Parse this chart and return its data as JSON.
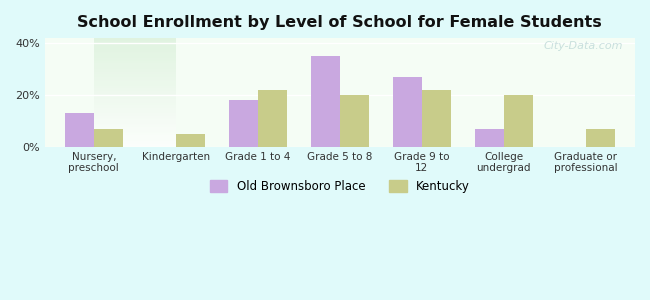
{
  "title": "School Enrollment by Level of School for Female Students",
  "categories": [
    "Nursery,\npreschool",
    "Kindergarten",
    "Grade 1 to 4",
    "Grade 5 to 8",
    "Grade 9 to\n12",
    "College\nundergrad",
    "Graduate or\nprofessional"
  ],
  "series": {
    "Old Brownsboro Place": [
      13,
      0,
      18,
      35,
      27,
      7,
      0
    ],
    "Kentucky": [
      7,
      5,
      22,
      20,
      22,
      20,
      7
    ]
  },
  "bar_colors": {
    "Old Brownsboro Place": "#c9a8e0",
    "Kentucky": "#c8cc8a"
  },
  "ylim": [
    0,
    42
  ],
  "yticks": [
    0,
    20,
    40
  ],
  "ytick_labels": [
    "0%",
    "20%",
    "40%"
  ],
  "background_color": "#e0fafa",
  "plot_bg_start": "#f0faf0",
  "plot_bg_end": "#ffffff",
  "legend_labels": [
    "Old Brownsboro Place",
    "Kentucky"
  ],
  "watermark": "City-Data.com",
  "bar_width": 0.35,
  "figsize": [
    6.5,
    3.0
  ],
  "dpi": 100
}
